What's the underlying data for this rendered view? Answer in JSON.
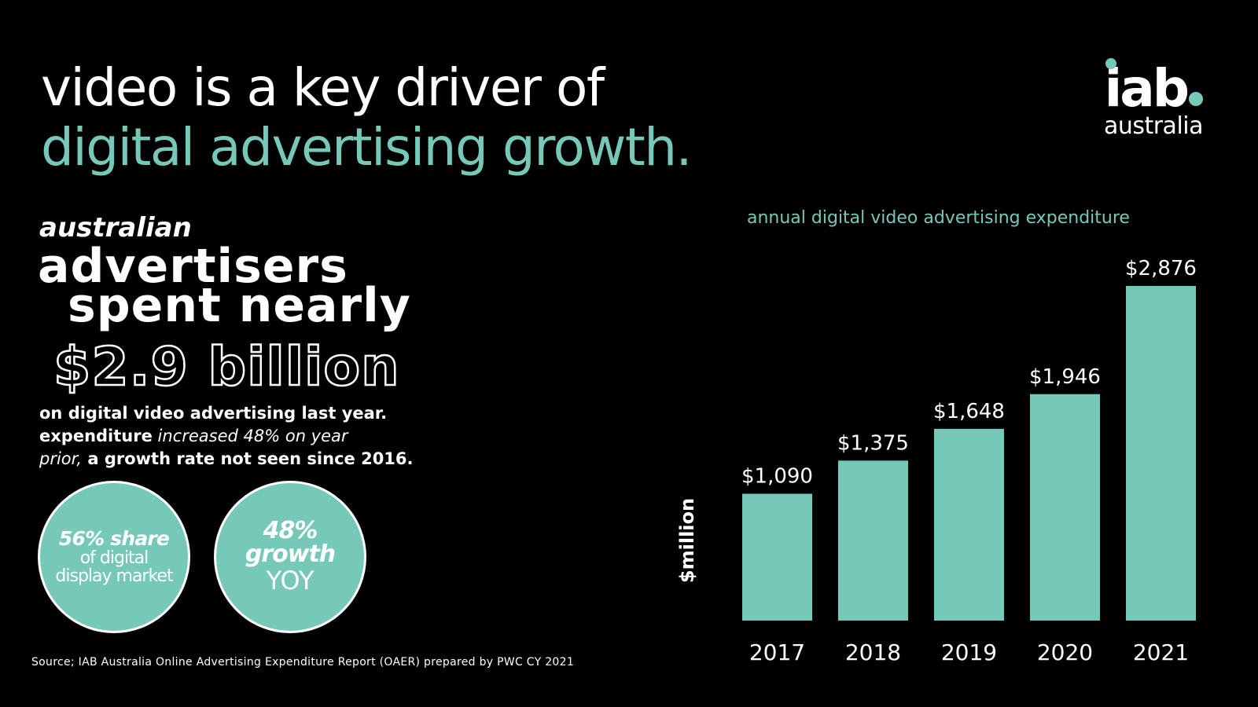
{
  "headline": {
    "line1": "video is a key driver of",
    "line2": "digital advertising growth."
  },
  "logo": {
    "main": "iab",
    "sub": "australia"
  },
  "summary": {
    "small": "australian",
    "big1": "advertisers",
    "big2": "spent nearly",
    "amount": "$2.9 billion",
    "line1": "on digital video advertising last year.",
    "line2_bold": "expenditure",
    "line2_italic": " increased 48% on year",
    "line3_italic": "prior,",
    "line3_bold": " a growth rate not seen since 2016."
  },
  "stats": {
    "share": {
      "a": "56% share",
      "b1": "of digital",
      "b2": "display market"
    },
    "growth": {
      "a1": "48%",
      "a2": "growth",
      "b": "YOY"
    }
  },
  "source": "Source; IAB Australia Online Advertising Expenditure Report (OAER) prepared by PWC CY 2021",
  "colors": {
    "accent": "#76c9b9",
    "background": "#000000",
    "text": "#ffffff"
  },
  "chart_data": {
    "type": "bar",
    "title": "annual digital video advertising expenditure",
    "ylabel": "$million",
    "xlabel": "",
    "categories": [
      "2017",
      "2018",
      "2019",
      "2020",
      "2021"
    ],
    "values": [
      1090,
      1375,
      1648,
      1946,
      2876
    ],
    "data_labels": [
      "$1,090",
      "$1,375",
      "$1,648",
      "$1,946",
      "$2,876"
    ],
    "ylim": [
      0,
      2876
    ],
    "grid": false,
    "legend": "none"
  }
}
